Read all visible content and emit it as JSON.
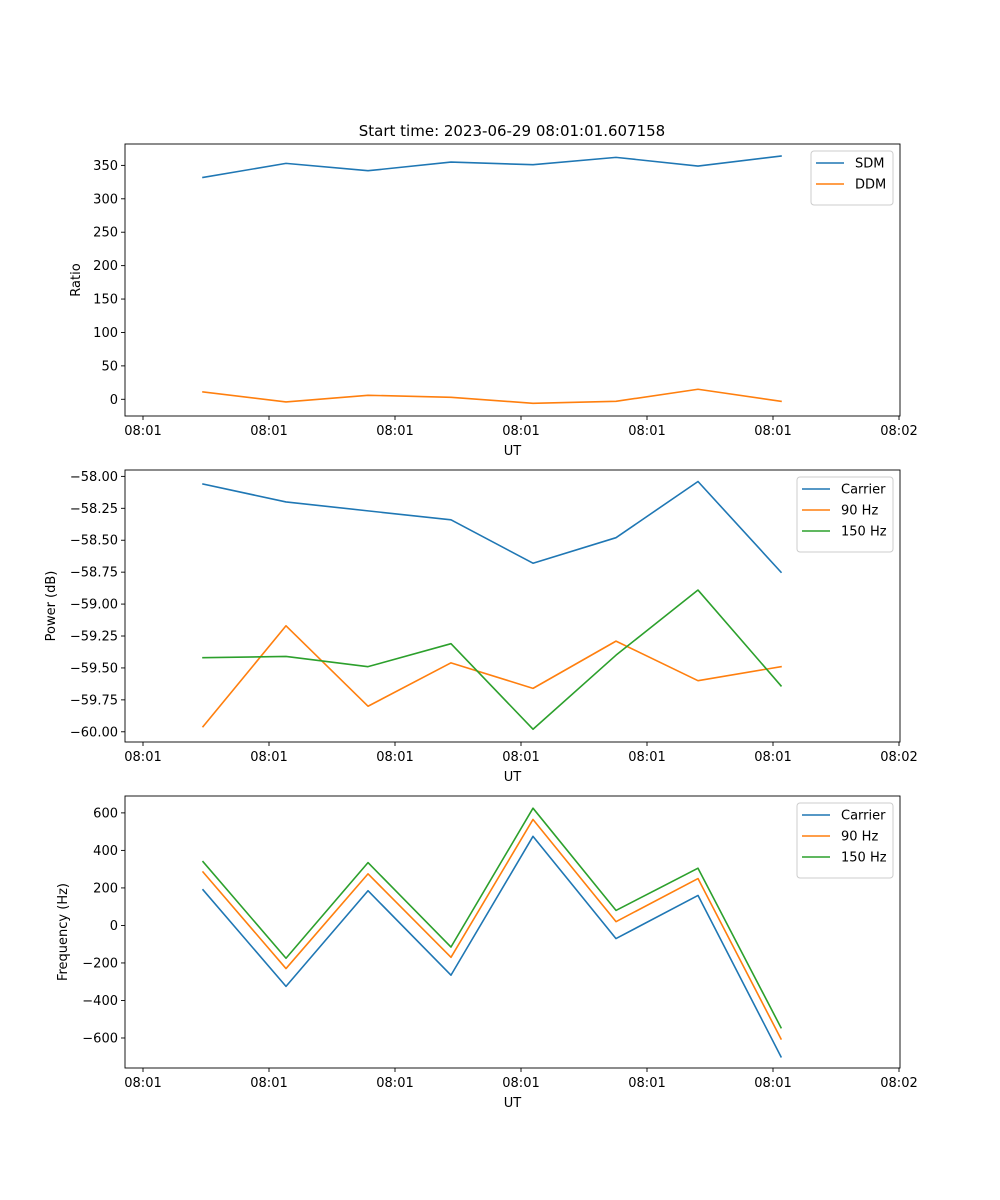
{
  "figure": {
    "title": "Start time: 2023-06-29 08:01:01.607158"
  },
  "chart_data": [
    {
      "type": "line",
      "title": "Start time: 2023-06-29 08:01:01.607158",
      "xlabel": "UT",
      "ylabel": "Ratio",
      "x_tick_labels": [
        "08:01",
        "08:01",
        "08:01",
        "08:01",
        "08:01",
        "08:01",
        "08:02"
      ],
      "y_ticks": [
        0,
        50,
        100,
        150,
        200,
        250,
        300,
        350
      ],
      "y_tick_labels": [
        "0",
        "50",
        "100",
        "150",
        "200",
        "250",
        "300",
        "350"
      ],
      "ylim": [
        -25,
        382
      ],
      "grid": false,
      "legend": "top-right",
      "series": [
        {
          "name": "SDM",
          "color": "#1f77b4",
          "values": [
            332,
            353,
            342,
            355,
            351,
            362,
            349,
            364
          ]
        },
        {
          "name": "DDM",
          "color": "#ff7f0e",
          "values": [
            11,
            -4,
            6,
            3,
            -6,
            -3,
            15,
            -3
          ]
        }
      ]
    },
    {
      "type": "line",
      "xlabel": "UT",
      "ylabel": "Power (dB)",
      "x_tick_labels": [
        "08:01",
        "08:01",
        "08:01",
        "08:01",
        "08:01",
        "08:01",
        "08:02"
      ],
      "y_ticks": [
        -60.0,
        -59.75,
        -59.5,
        -59.25,
        -59.0,
        -58.75,
        -58.5,
        -58.25,
        -58.0
      ],
      "y_tick_labels": [
        "−60.00",
        "−59.75",
        "−59.50",
        "−59.25",
        "−59.00",
        "−58.75",
        "−58.50",
        "−58.25",
        "−58.00"
      ],
      "ylim": [
        -60.08,
        -57.95
      ],
      "grid": false,
      "legend": "top-right",
      "series": [
        {
          "name": "Carrier",
          "color": "#1f77b4",
          "values": [
            -58.06,
            -58.2,
            -58.27,
            -58.34,
            -58.68,
            -58.48,
            -58.04,
            -58.75
          ]
        },
        {
          "name": "90 Hz",
          "color": "#ff7f0e",
          "values": [
            -59.96,
            -59.17,
            -59.8,
            -59.46,
            -59.66,
            -59.29,
            -59.6,
            -59.49
          ]
        },
        {
          "name": "150 Hz",
          "color": "#2ca02c",
          "values": [
            -59.42,
            -59.41,
            -59.49,
            -59.31,
            -59.98,
            -59.4,
            -58.89,
            -59.64
          ]
        }
      ]
    },
    {
      "type": "line",
      "xlabel": "UT",
      "ylabel": "Frequency (Hz)",
      "x_tick_labels": [
        "08:01",
        "08:01",
        "08:01",
        "08:01",
        "08:01",
        "08:01",
        "08:02"
      ],
      "y_ticks": [
        -600,
        -400,
        -200,
        0,
        200,
        400,
        600
      ],
      "y_tick_labels": [
        "−600",
        "−400",
        "−200",
        "0",
        "200",
        "400",
        "600"
      ],
      "ylim": [
        -760,
        690
      ],
      "grid": false,
      "legend": "top-right",
      "series": [
        {
          "name": "Carrier",
          "color": "#1f77b4",
          "values": [
            190,
            -325,
            185,
            -265,
            475,
            -70,
            160,
            -700
          ]
        },
        {
          "name": "90 Hz",
          "color": "#ff7f0e",
          "values": [
            285,
            -230,
            275,
            -170,
            565,
            20,
            250,
            -605
          ]
        },
        {
          "name": "150 Hz",
          "color": "#2ca02c",
          "values": [
            340,
            -175,
            335,
            -115,
            625,
            80,
            305,
            -545
          ]
        }
      ]
    }
  ]
}
